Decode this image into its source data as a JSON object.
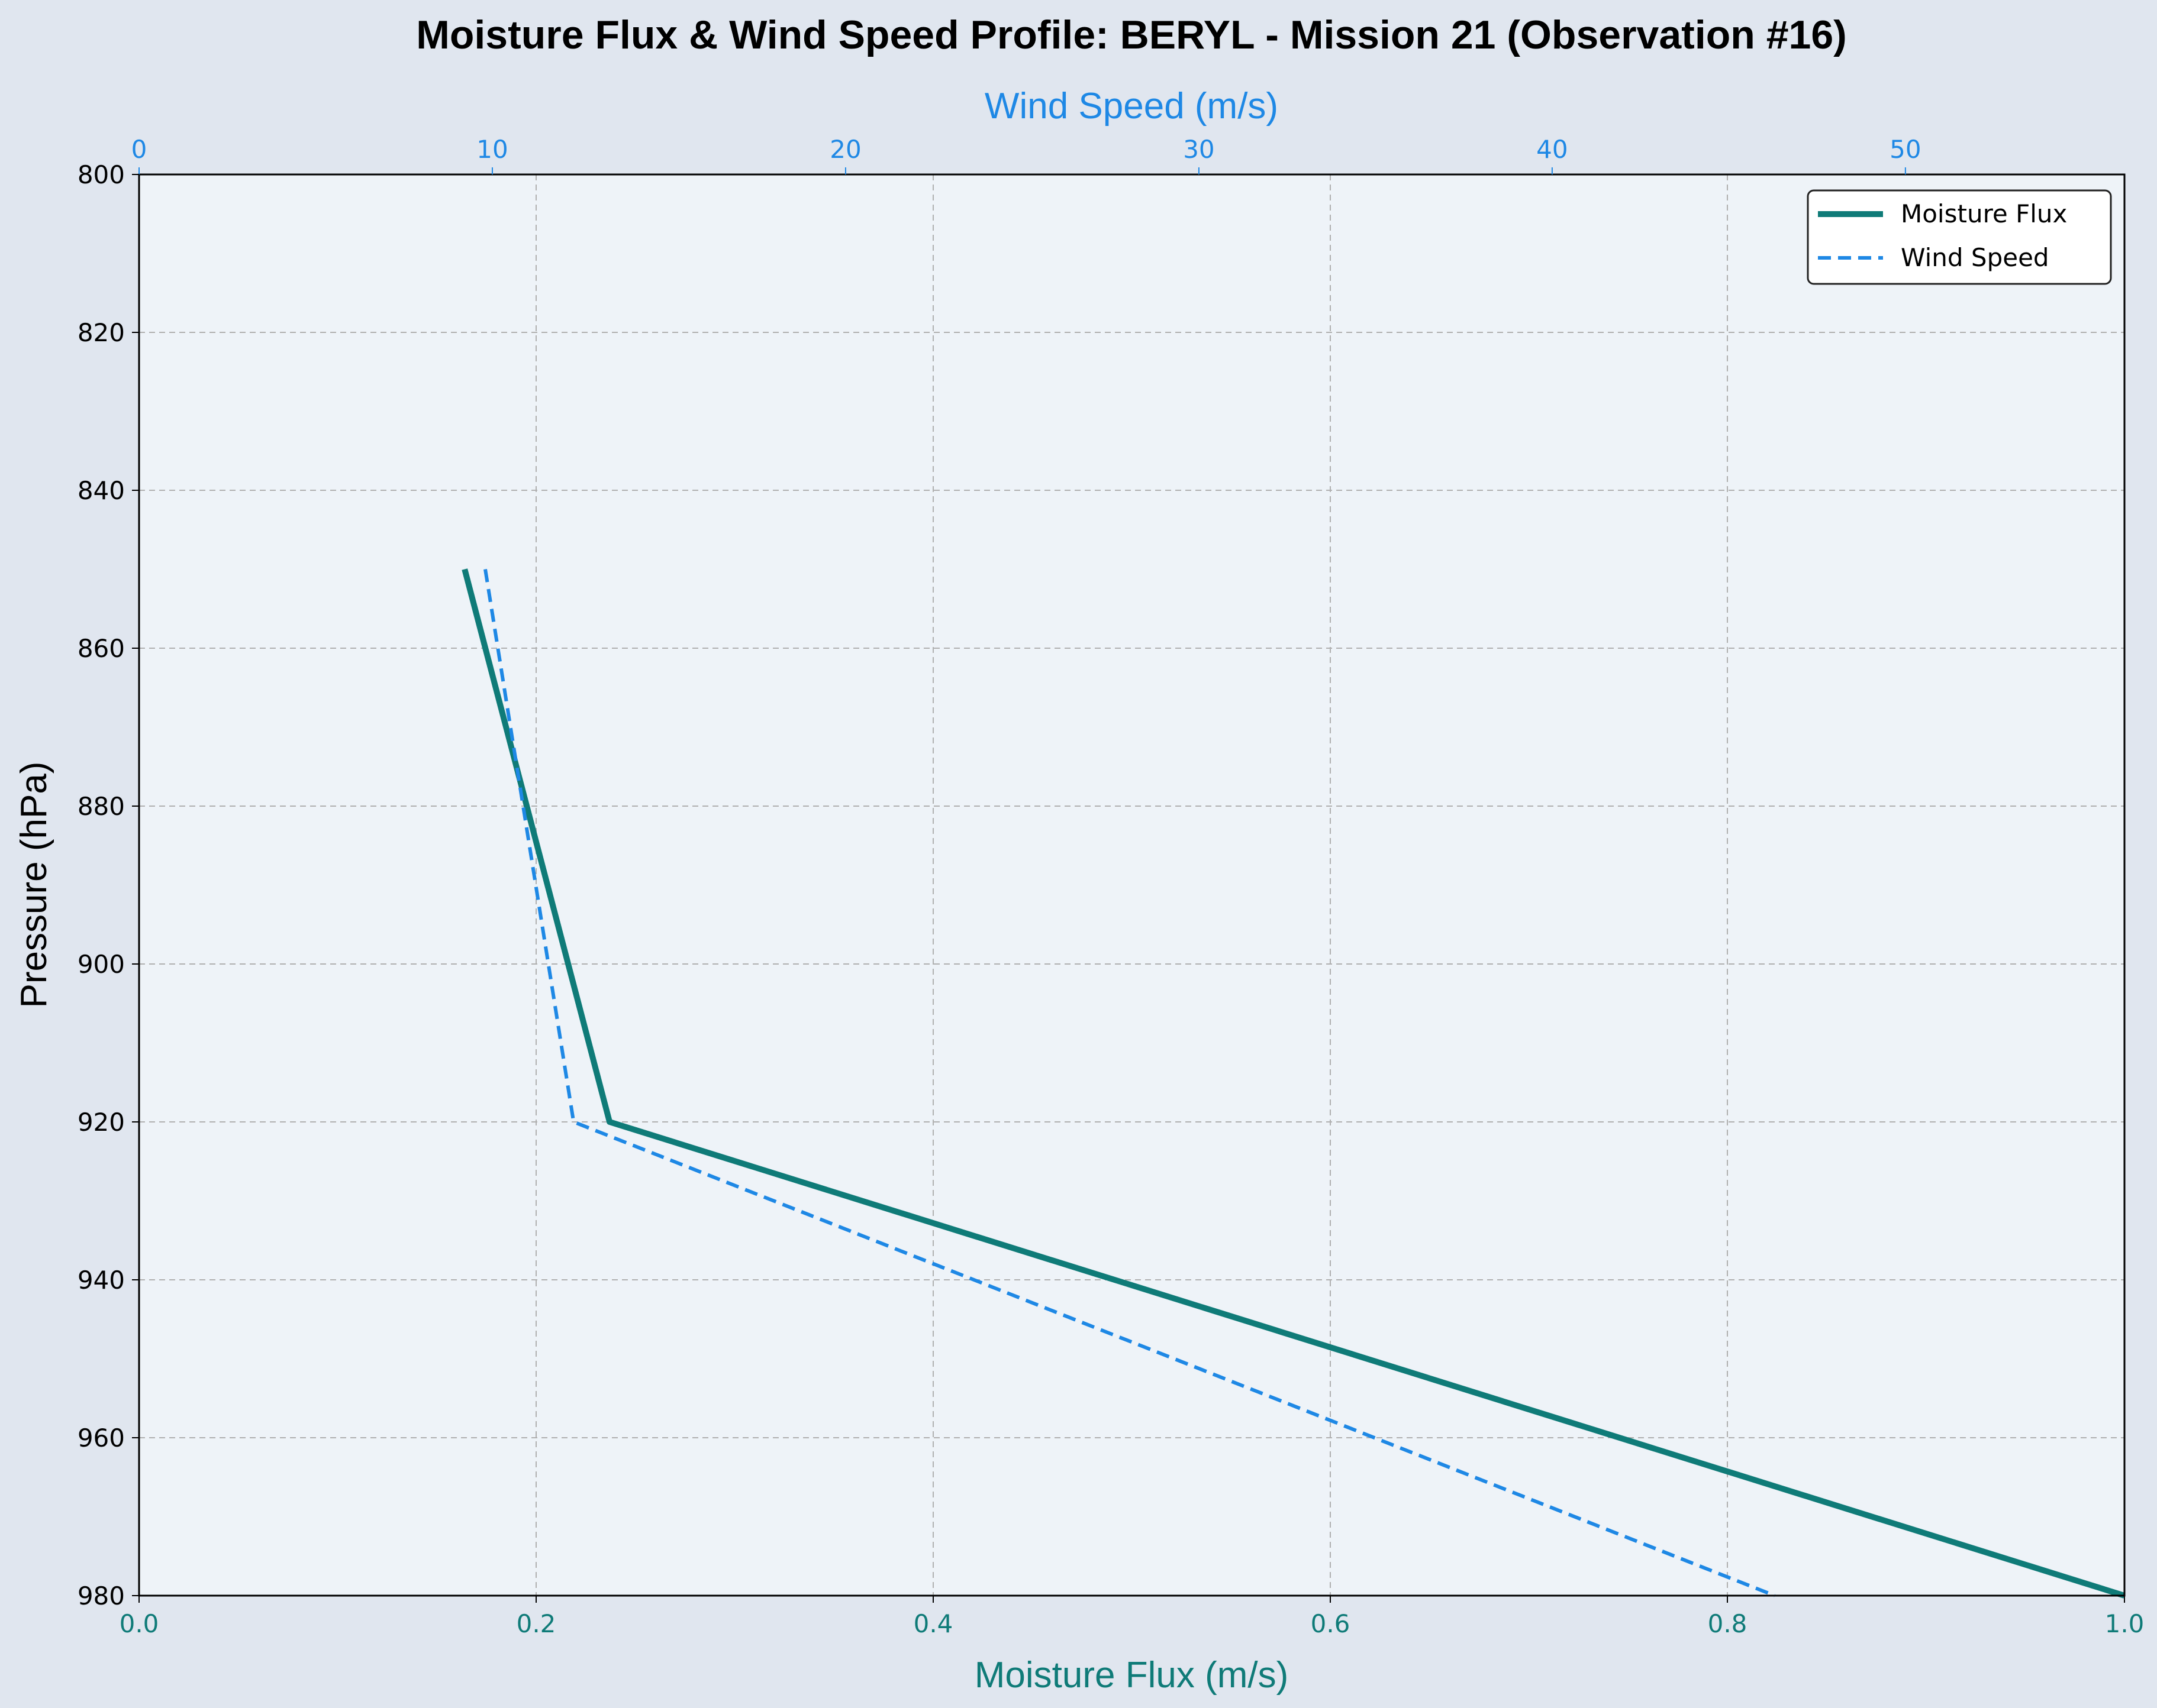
{
  "chart_data": {
    "type": "line",
    "title": "Moisture Flux & Wind Speed Profile: BERYL - Mission 21 (Observation #16)",
    "xlabel": "Moisture Flux (m/s)",
    "x2label": "Wind Speed (m/s)",
    "ylabel": "Pressure (hPa)",
    "xlim": [
      0.0,
      1.0
    ],
    "x2lim": [
      0,
      56.2
    ],
    "ylim": [
      980,
      800
    ],
    "y_inverted": true,
    "grid": true,
    "legend_position": "top-right",
    "x_ticks": [
      "0.0",
      "0.2",
      "0.4",
      "0.6",
      "0.8",
      "1.0"
    ],
    "x2_ticks": [
      "0",
      "10",
      "20",
      "30",
      "40",
      "50"
    ],
    "y_ticks": [
      "800",
      "820",
      "840",
      "860",
      "880",
      "900",
      "920",
      "940",
      "960",
      "980"
    ],
    "series": [
      {
        "name": "Moisture Flux",
        "axis": "bottom",
        "color": "#0f7b78",
        "style": "solid",
        "points": [
          [
            0.164,
            850
          ],
          [
            0.237,
            920
          ],
          [
            1.0,
            980
          ]
        ]
      },
      {
        "name": "Wind Speed",
        "axis": "top",
        "color": "#1e88e5",
        "style": "dashed",
        "points": [
          [
            9.8,
            850
          ],
          [
            12.3,
            920
          ],
          [
            46.3,
            980
          ]
        ]
      }
    ]
  }
}
